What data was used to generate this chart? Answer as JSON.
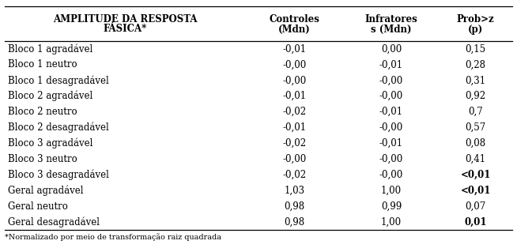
{
  "col_header_line1": [
    "AMPLITUDE DA RESPOSTA",
    "Controles",
    "Infratores",
    "Prob>z"
  ],
  "col_header_line2": [
    "FÁSICA*",
    "(Mdn)",
    "s (Mdn)",
    "(p)"
  ],
  "rows": [
    [
      "Bloco 1 agradável",
      "-0,01",
      "0,00",
      "0,15"
    ],
    [
      "Bloco 1 neutro",
      "-0,00",
      "-0,01",
      "0,28"
    ],
    [
      "Bloco 1 desagradável",
      "-0,00",
      "-0,00",
      "0,31"
    ],
    [
      "Bloco 2 agradável",
      "-0,01",
      "-0,00",
      "0,92"
    ],
    [
      "Bloco 2 neutro",
      "-0,02",
      "-0,01",
      "0,7"
    ],
    [
      "Bloco 2 desagradável",
      "-0,01",
      "-0,00",
      "0,57"
    ],
    [
      "Bloco 3 agradável",
      "-0,02",
      "-0,01",
      "0,08"
    ],
    [
      "Bloco 3 neutro",
      "-0,00",
      "-0,00",
      "0,41"
    ],
    [
      "Bloco 3 desagradável",
      "-0,02",
      "-0,00",
      "<0,01"
    ],
    [
      "Geral agradável",
      "1,03",
      "1,00",
      "<0,01"
    ],
    [
      "Geral neutro",
      "0,98",
      "0,99",
      "0,07"
    ],
    [
      "Geral desagradável",
      "0,98",
      "1,00",
      "0,01"
    ]
  ],
  "bold_prob": [
    8,
    9,
    11
  ],
  "footnote": "*Normalizado por meio de transformação raiz quadrada",
  "bg_color": "#ffffff",
  "text_color": "#000000",
  "font_size": 8.5,
  "header_font_size": 8.5
}
